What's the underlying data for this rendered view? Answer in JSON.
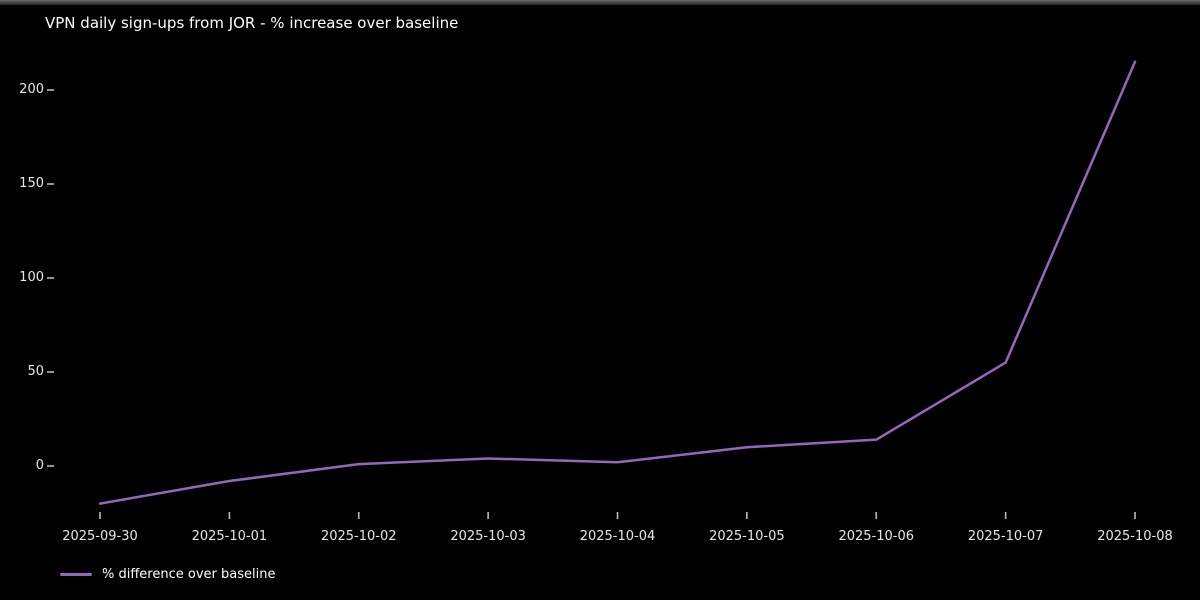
{
  "chart_data": {
    "type": "line",
    "title": "VPN daily sign-ups from JOR - % increase over baseline",
    "xlabel": "",
    "ylabel": "",
    "x": [
      "2025-09-30",
      "2025-10-01",
      "2025-10-02",
      "2025-10-03",
      "2025-10-04",
      "2025-10-05",
      "2025-10-06",
      "2025-10-07",
      "2025-10-08"
    ],
    "series": [
      {
        "name": "% difference over baseline",
        "color": "#9467bd",
        "values": [
          -20,
          -8,
          1,
          4,
          2,
          10,
          14,
          55,
          215
        ]
      }
    ],
    "yticks": [
      0,
      50,
      100,
      150,
      200
    ],
    "ylim": [
      -30,
      220
    ],
    "grid": false,
    "legend": {
      "position": "lower-left",
      "label": "% difference over baseline"
    },
    "colors": {
      "background": "#000000",
      "title_text": "#ffffff",
      "tick_text": "#e6e6e6",
      "tick_mark": "#bbbbbb",
      "line": "#9467bd"
    }
  }
}
